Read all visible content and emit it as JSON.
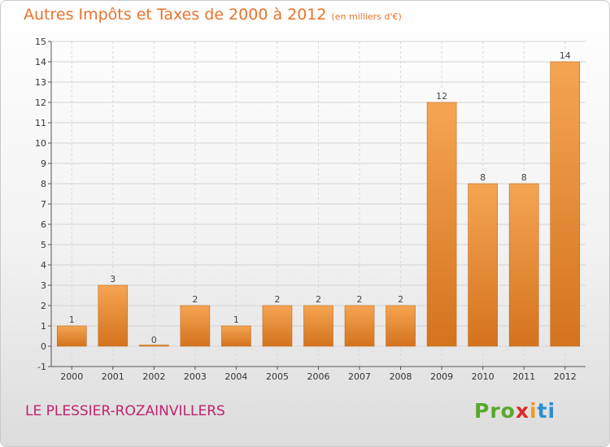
{
  "header": {
    "title": "Autres Impôts et Taxes de 2000 à 2012",
    "unit": "(en milliers d'€)"
  },
  "footer": {
    "town": "LE PLESSIER-ROZAINVILLERS",
    "logo_text": "Proxiti"
  },
  "colors": {
    "bar_top": "#f5a552",
    "bar_bottom": "#d4731e",
    "title": "#e8732b",
    "town": "#c0226f"
  },
  "chart_data": {
    "type": "bar",
    "title": "Autres Impôts et Taxes de 2000 à 2012",
    "subtitle": "(en milliers d'€)",
    "xlabel": "",
    "ylabel": "",
    "categories": [
      "2000",
      "2001",
      "2002",
      "2003",
      "2004",
      "2005",
      "2006",
      "2007",
      "2008",
      "2009",
      "2010",
      "2011",
      "2012"
    ],
    "values": [
      1,
      3,
      0,
      2,
      1,
      2,
      2,
      2,
      2,
      12,
      8,
      8,
      14
    ],
    "ylim": [
      -1,
      15
    ],
    "yticks": [
      -1,
      0,
      1,
      2,
      3,
      4,
      5,
      6,
      7,
      8,
      9,
      10,
      11,
      12,
      13,
      14,
      15
    ],
    "grid": true,
    "legend": "none"
  }
}
